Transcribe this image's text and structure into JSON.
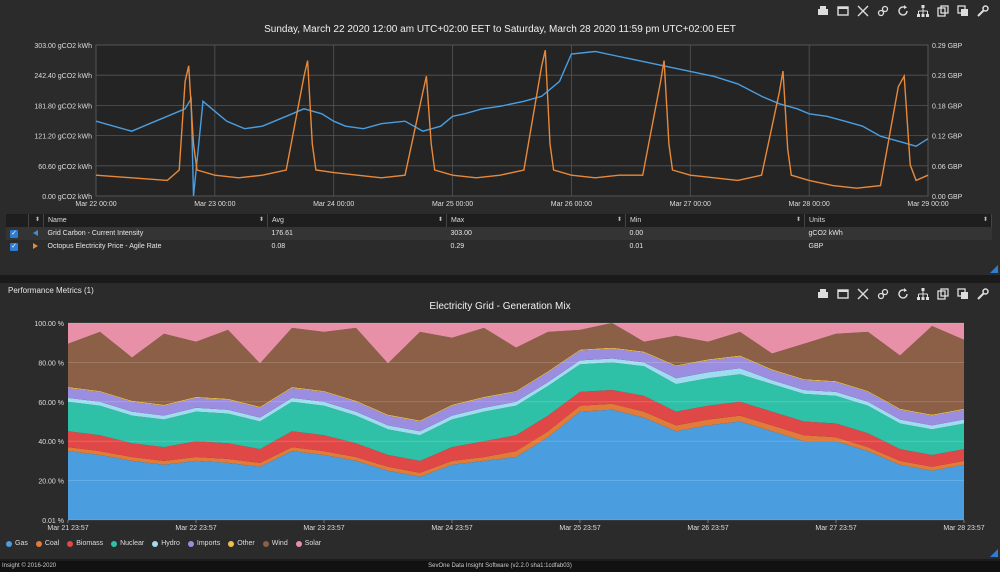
{
  "toolbar_icons": [
    "print-icon",
    "window-icon",
    "expand-icon",
    "link-icon",
    "refresh-icon",
    "hierarchy-icon",
    "export-icon",
    "copy-icon",
    "settings-icon"
  ],
  "panel1": {
    "title": "Sunday, March 22 2020 12:00 am UTC+02:00 EET to Saturday, March 28 2020 11:59 pm UTC+02:00 EET",
    "table": {
      "headers": [
        "Name",
        "Avg",
        "Max",
        "Min",
        "Units"
      ],
      "rows": [
        {
          "name": "Grid Carbon - Current Intensity",
          "avg": "176.61",
          "max": "303.00",
          "min": "0.00",
          "units": "gCO2 kWh",
          "color": "#3a8fd6"
        },
        {
          "name": "Octopus Electricity Price - Agile Rate",
          "avg": "0.08",
          "max": "0.29",
          "min": "0.01",
          "units": "GBP",
          "color": "#e8893a"
        }
      ]
    }
  },
  "panel2": {
    "title": "Performance Metrics (1)",
    "chart_title": "Electricity Grid - Generation Mix",
    "legend": [
      {
        "name": "Gas",
        "color": "#4a9ee0"
      },
      {
        "name": "Coal",
        "color": "#e07b39"
      },
      {
        "name": "Biomass",
        "color": "#e04848"
      },
      {
        "name": "Nuclear",
        "color": "#2fc0a8"
      },
      {
        "name": "Hydro",
        "color": "#9fdcf0"
      },
      {
        "name": "Imports",
        "color": "#9b8de0"
      },
      {
        "name": "Other",
        "color": "#f0c048"
      },
      {
        "name": "Wind",
        "color": "#8b6046"
      },
      {
        "name": "Solar",
        "color": "#e890a8"
      }
    ]
  },
  "footer": {
    "left": "Insight © 2016-2020",
    "center": "SevOne Data Insight Software (v2.2.0 sha1:1cdfab03)"
  },
  "chart_data": [
    {
      "type": "line",
      "title": "",
      "x_ticks": [
        "Mar 22 00:00",
        "Mar 23 00:00",
        "Mar 24 00:00",
        "Mar 25 00:00",
        "Mar 26 00:00",
        "Mar 27 00:00",
        "Mar 28 00:00",
        "Mar 29 00:00"
      ],
      "y_left_ticks": [
        "303.00 gCO2 kWh",
        "242.40 gCO2 kWh",
        "181.80 gCO2 kWh",
        "121.20 gCO2 kWh",
        "60.60 gCO2 kWh",
        "0.00 gCO2 kWh"
      ],
      "y_right_ticks": [
        "0.29 GBP",
        "0.23 GBP",
        "0.18 GBP",
        "0.12 GBP",
        "0.06 GBP",
        "0.00 GBP"
      ],
      "ylim_left": [
        0,
        303
      ],
      "ylim_right": [
        0,
        0.29
      ],
      "x_range_days": [
        0,
        7
      ],
      "series": [
        {
          "name": "Grid Carbon - Current Intensity",
          "axis": "left",
          "color": "#4a9ee0",
          "x": [
            0,
            0.15,
            0.3,
            0.45,
            0.6,
            0.75,
            0.8,
            0.82,
            0.9,
            1.0,
            1.1,
            1.25,
            1.4,
            1.6,
            1.75,
            1.9,
            2.0,
            2.1,
            2.25,
            2.4,
            2.6,
            2.75,
            2.9,
            3.0,
            3.1,
            3.25,
            3.4,
            3.6,
            3.75,
            3.9,
            4.0,
            4.2,
            4.4,
            4.6,
            4.8,
            5.0,
            5.2,
            5.4,
            5.6,
            5.75,
            5.9,
            6.0,
            6.15,
            6.3,
            6.45,
            6.6,
            6.75,
            6.9,
            7.0
          ],
          "y": [
            150,
            140,
            130,
            145,
            160,
            175,
            195,
            0,
            190,
            170,
            150,
            135,
            140,
            160,
            175,
            165,
            150,
            140,
            135,
            145,
            150,
            130,
            140,
            160,
            165,
            175,
            180,
            190,
            200,
            230,
            285,
            290,
            280,
            270,
            260,
            250,
            240,
            225,
            200,
            185,
            175,
            165,
            160,
            150,
            140,
            120,
            110,
            100,
            115
          ]
        },
        {
          "name": "Octopus Electricity Price - Agile Rate",
          "axis": "right",
          "color": "#e8893a",
          "x": [
            0,
            0.3,
            0.6,
            0.7,
            0.75,
            0.78,
            0.82,
            0.85,
            1.0,
            1.2,
            1.4,
            1.6,
            1.75,
            1.78,
            1.82,
            1.85,
            2.0,
            2.2,
            2.4,
            2.6,
            2.75,
            2.78,
            2.82,
            2.85,
            3.0,
            3.2,
            3.4,
            3.6,
            3.75,
            3.78,
            3.82,
            3.85,
            4.0,
            4.2,
            4.4,
            4.6,
            4.75,
            4.78,
            4.82,
            4.85,
            5.0,
            5.2,
            5.4,
            5.6,
            5.75,
            5.78,
            5.82,
            5.85,
            6.0,
            6.2,
            6.4,
            6.6,
            6.75,
            6.8,
            6.85,
            6.9,
            7.0
          ],
          "y": [
            0.04,
            0.035,
            0.03,
            0.05,
            0.22,
            0.25,
            0.1,
            0.05,
            0.04,
            0.035,
            0.04,
            0.05,
            0.23,
            0.26,
            0.1,
            0.05,
            0.045,
            0.04,
            0.035,
            0.04,
            0.2,
            0.23,
            0.1,
            0.05,
            0.04,
            0.035,
            0.04,
            0.05,
            0.25,
            0.28,
            0.1,
            0.05,
            0.04,
            0.035,
            0.04,
            0.04,
            0.22,
            0.26,
            0.1,
            0.05,
            0.04,
            0.035,
            0.03,
            0.04,
            0.2,
            0.24,
            0.09,
            0.04,
            0.03,
            0.02,
            0.015,
            0.02,
            0.21,
            0.23,
            0.06,
            0.03,
            0.04
          ]
        }
      ]
    },
    {
      "type": "area",
      "title": "Electricity Grid - Generation Mix",
      "x_ticks": [
        "Mar 21 23:57",
        "Mar 22 23:57",
        "Mar 23 23:57",
        "Mar 24 23:57",
        "Mar 25 23:57",
        "Mar 26 23:57",
        "Mar 27 23:57",
        "Mar 28 23:57"
      ],
      "y_ticks": [
        "100.00 %",
        "80.00 %",
        "60.00 %",
        "40.00 %",
        "20.00 %",
        "0.01 %"
      ],
      "ylim": [
        0,
        100
      ],
      "x": [
        0,
        0.25,
        0.5,
        0.75,
        1.0,
        1.25,
        1.5,
        1.75,
        2.0,
        2.25,
        2.5,
        2.75,
        3.0,
        3.25,
        3.5,
        3.75,
        4.0,
        4.25,
        4.5,
        4.75,
        5.0,
        5.25,
        5.5,
        5.75,
        6.0,
        6.25,
        6.5,
        6.75,
        7.0
      ],
      "series": [
        {
          "name": "Gas",
          "values": [
            35,
            33,
            30,
            28,
            30,
            29,
            27,
            35,
            33,
            30,
            25,
            22,
            28,
            30,
            32,
            42,
            55,
            56,
            52,
            45,
            48,
            50,
            45,
            40,
            40,
            35,
            28,
            25,
            28
          ]
        },
        {
          "name": "Coal",
          "values": [
            2,
            2,
            2,
            2,
            2,
            2,
            2,
            2,
            2,
            2,
            2,
            2,
            2,
            2,
            3,
            3,
            3,
            3,
            3,
            3,
            3,
            3,
            3,
            3,
            2,
            2,
            2,
            2,
            2
          ]
        },
        {
          "name": "Biomass",
          "values": [
            8,
            8,
            7,
            7,
            8,
            8,
            7,
            8,
            8,
            7,
            6,
            6,
            7,
            8,
            8,
            8,
            7,
            7,
            8,
            7,
            7,
            7,
            7,
            7,
            7,
            7,
            6,
            6,
            6
          ]
        },
        {
          "name": "Nuclear",
          "values": [
            15,
            15,
            14,
            14,
            15,
            15,
            14,
            15,
            15,
            14,
            13,
            13,
            14,
            15,
            15,
            15,
            14,
            14,
            15,
            14,
            14,
            14,
            14,
            14,
            14,
            14,
            13,
            13,
            13
          ]
        },
        {
          "name": "Hydro",
          "values": [
            2,
            2,
            2,
            2,
            2,
            2,
            2,
            2,
            2,
            2,
            2,
            2,
            2,
            2,
            2,
            2,
            2,
            2,
            2,
            3,
            3,
            3,
            2,
            2,
            2,
            2,
            2,
            2,
            2
          ]
        },
        {
          "name": "Imports",
          "values": [
            5,
            5,
            5,
            5,
            5,
            5,
            5,
            5,
            5,
            5,
            5,
            5,
            5,
            5,
            5,
            5,
            5,
            5,
            5,
            6,
            6,
            6,
            5,
            5,
            5,
            5,
            5,
            5,
            5
          ]
        },
        {
          "name": "Other",
          "values": [
            0.5,
            0.5,
            0.5,
            0.5,
            0.5,
            0.5,
            0.5,
            0.5,
            0.5,
            0.5,
            0.5,
            0.5,
            0.5,
            0.5,
            0.5,
            0.5,
            0.5,
            0.5,
            0.5,
            0.5,
            0.5,
            0.5,
            0.5,
            0.5,
            0.5,
            0.5,
            0.5,
            0.5,
            0.5
          ]
        },
        {
          "name": "Wind",
          "values": [
            22,
            30,
            22,
            36,
            28,
            35,
            22,
            30,
            30,
            37,
            26,
            45,
            34,
            35,
            22,
            20,
            10,
            13,
            5,
            15,
            9,
            12,
            8,
            18,
            24,
            30,
            27,
            45,
            35
          ]
        },
        {
          "name": "Solar",
          "values": [
            10.5,
            4.5,
            17.5,
            5.5,
            9.5,
            3.5,
            20.5,
            2.5,
            4.5,
            2.5,
            20.5,
            4.5,
            7.5,
            2.5,
            12.5,
            4.5,
            3.5,
            2.5,
            9.5,
            6.5,
            9.5,
            4.5,
            15.5,
            10.5,
            5.5,
            4.5,
            16.5,
            1.5,
            8.5
          ]
        }
      ]
    }
  ]
}
